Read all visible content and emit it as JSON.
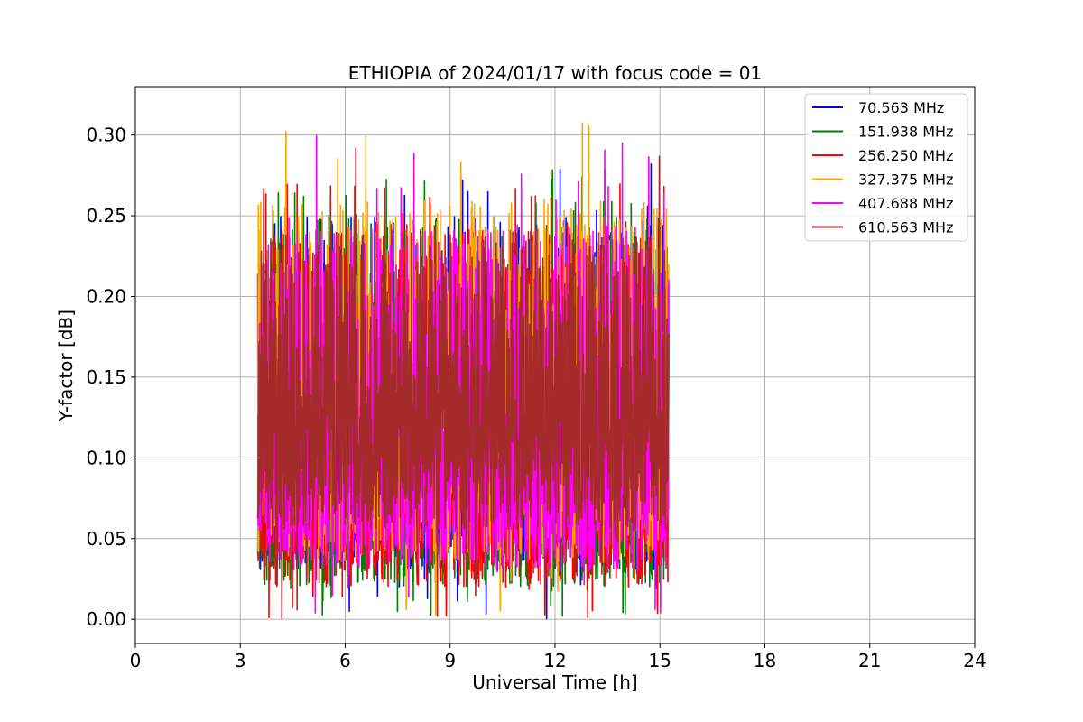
{
  "chart_data": {
    "type": "line",
    "title": "ETHIOPIA of 2024/01/17 with focus code = 01",
    "xlabel": "Universal Time [h]",
    "ylabel": "Y-factor [dB]",
    "xlim": [
      0,
      24
    ],
    "ylim": [
      -0.015,
      0.33
    ],
    "xticks": [
      0,
      3,
      6,
      9,
      12,
      15,
      18,
      21,
      24
    ],
    "xtick_labels": [
      "0",
      "3",
      "6",
      "9",
      "12",
      "15",
      "18",
      "21",
      "24"
    ],
    "yticks": [
      0.0,
      0.05,
      0.1,
      0.15,
      0.2,
      0.25,
      0.3
    ],
    "ytick_labels": [
      "0.00",
      "0.05",
      "0.10",
      "0.15",
      "0.20",
      "0.25",
      "0.30"
    ],
    "grid": true,
    "legend_position": "top-right",
    "x_start": 3.5,
    "x_end": 15.25,
    "series": [
      {
        "name": " 70.563 MHz",
        "color": "#0000ff",
        "low": 0.0,
        "high": 0.285,
        "typical_low": 0.03,
        "typical_high": 0.25
      },
      {
        "name": "151.938 MHz",
        "color": "#008000",
        "low": 0.0,
        "high": 0.28,
        "typical_low": 0.02,
        "typical_high": 0.25
      },
      {
        "name": "256.250 MHz",
        "color": "#ff0000",
        "low": 0.0,
        "high": 0.27,
        "typical_low": 0.02,
        "typical_high": 0.245
      },
      {
        "name": "327.375 MHz",
        "color": "#ffa500",
        "low": 0.0,
        "high": 0.314,
        "typical_low": 0.035,
        "typical_high": 0.26
      },
      {
        "name": "407.688 MHz",
        "color": "#ff00ff",
        "low": 0.0,
        "high": 0.3,
        "typical_low": 0.03,
        "typical_high": 0.245
      },
      {
        "name": "610.563 MHz",
        "color": "#a52a2a",
        "low": 0.0,
        "high": 0.3,
        "typical_low": 0.055,
        "typical_high": 0.24
      }
    ]
  }
}
